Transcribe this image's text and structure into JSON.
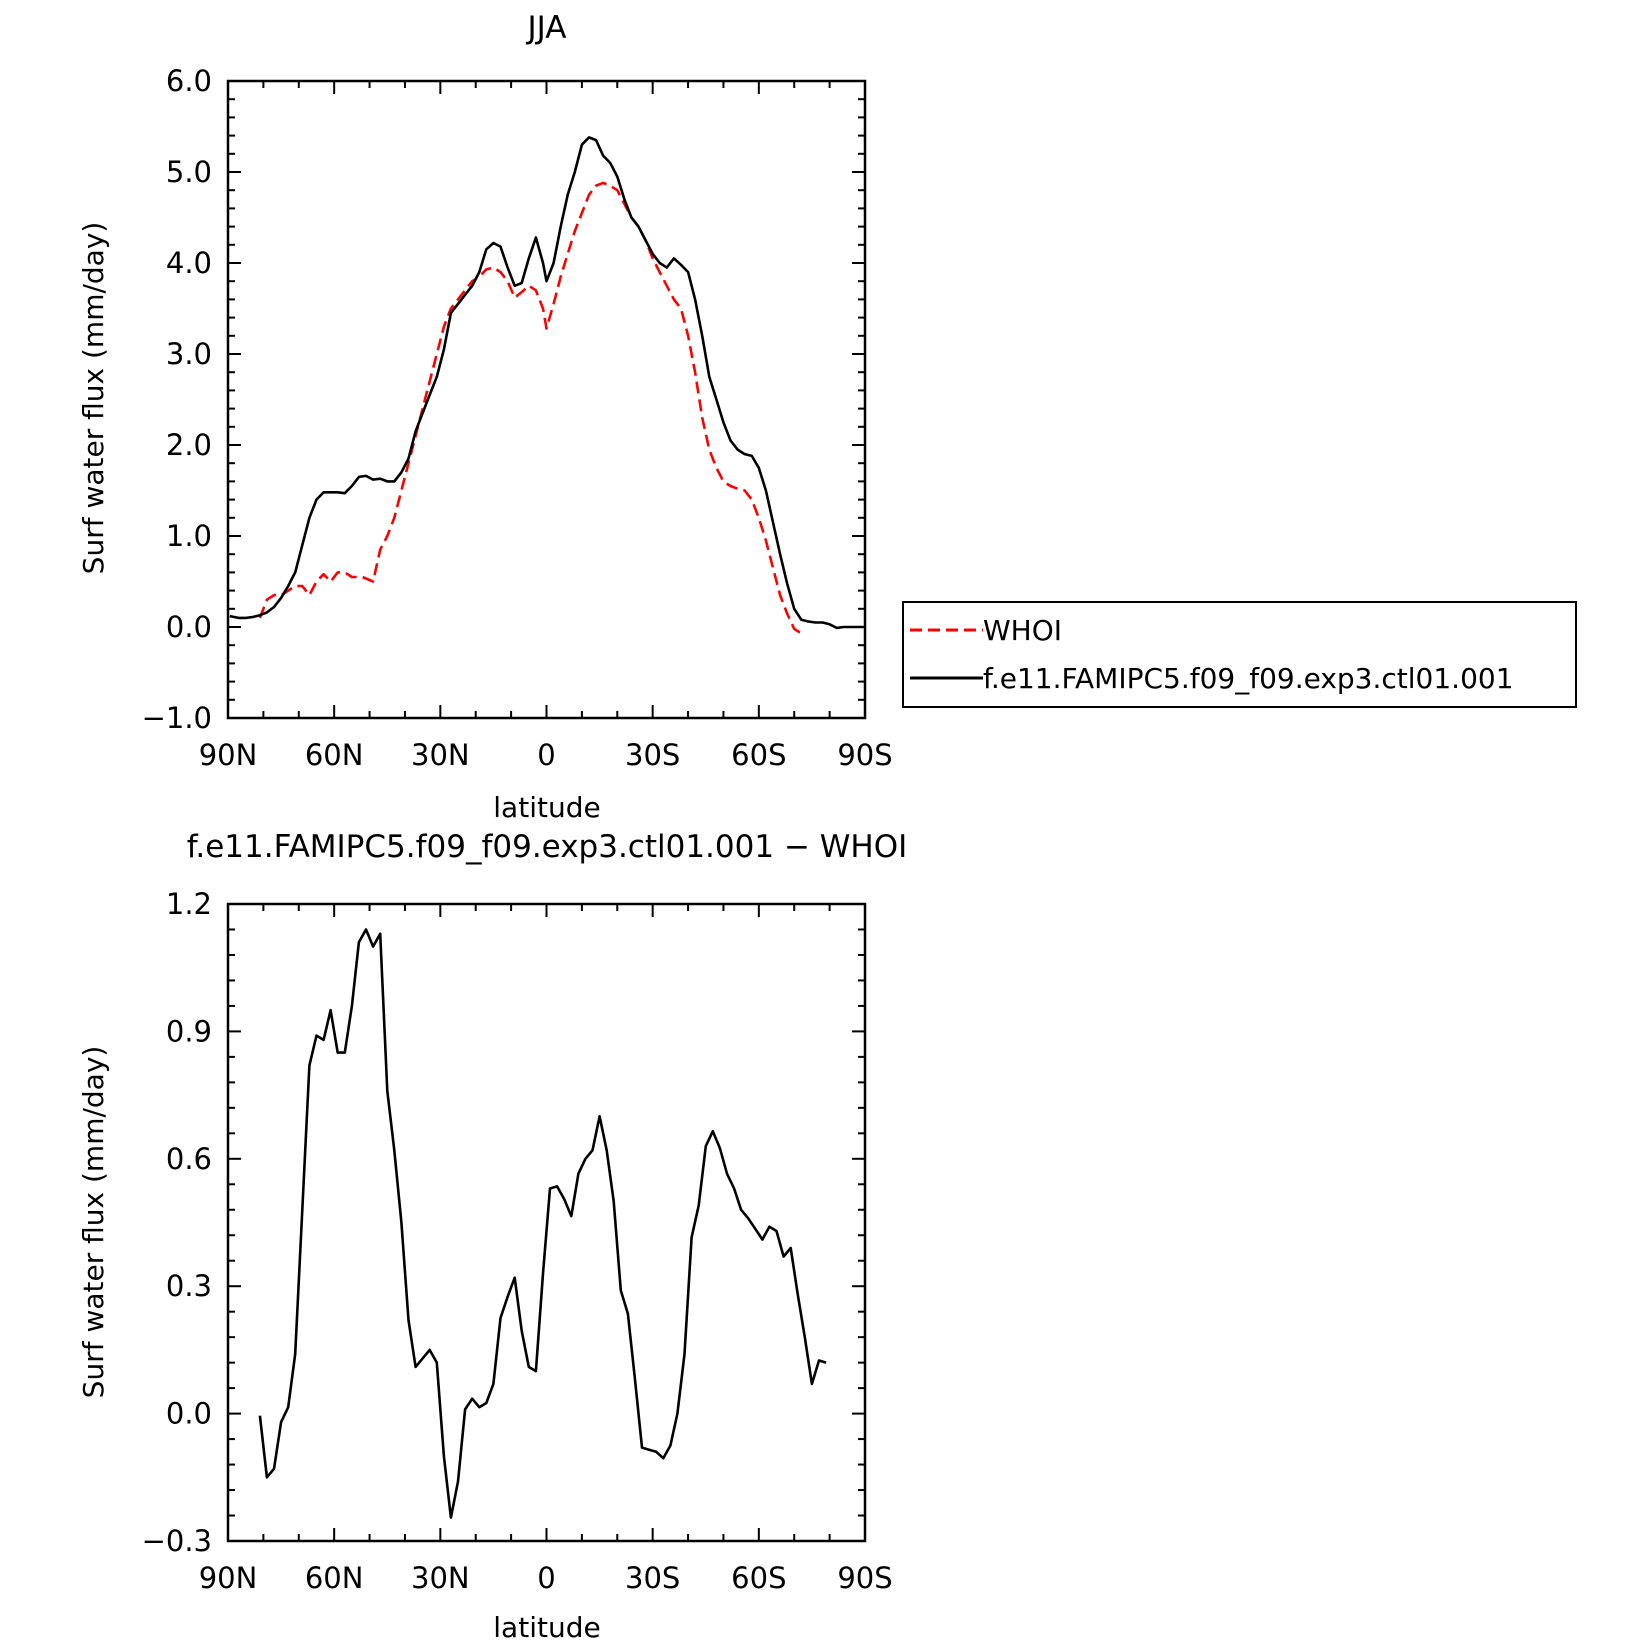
{
  "chart_data": [
    {
      "type": "line",
      "title": "JJA",
      "xlabel": "latitude",
      "ylabel": "Surf water flux (mm/day)",
      "xlim": [
        90,
        -90
      ],
      "ylim": [
        -1.0,
        6.0
      ],
      "x_ticks": [
        {
          "value": 90,
          "label": "90N"
        },
        {
          "value": 60,
          "label": "60N"
        },
        {
          "value": 30,
          "label": "30N"
        },
        {
          "value": 0,
          "label": "0"
        },
        {
          "value": -30,
          "label": "30S"
        },
        {
          "value": -60,
          "label": "60S"
        },
        {
          "value": -90,
          "label": "90S"
        }
      ],
      "y_ticks": [
        {
          "value": -1.0,
          "label": "−1.0"
        },
        {
          "value": 0.0,
          "label": "0.0"
        },
        {
          "value": 1.0,
          "label": "1.0"
        },
        {
          "value": 2.0,
          "label": "2.0"
        },
        {
          "value": 3.0,
          "label": "3.0"
        },
        {
          "value": 4.0,
          "label": "4.0"
        },
        {
          "value": 5.0,
          "label": "5.0"
        },
        {
          "value": 6.0,
          "label": "6.0"
        }
      ],
      "legend_position": "right",
      "series": [
        {
          "name": "WHOI",
          "color": "#ff0000",
          "dash": true,
          "points": [
            [
              81,
              0.1
            ],
            [
              79,
              0.3
            ],
            [
              77,
              0.35
            ],
            [
              75,
              0.35
            ],
            [
              73,
              0.4
            ],
            [
              71,
              0.45
            ],
            [
              69,
              0.45
            ],
            [
              67,
              0.35
            ],
            [
              65,
              0.5
            ],
            [
              63,
              0.58
            ],
            [
              61,
              0.5
            ],
            [
              59,
              0.6
            ],
            [
              57,
              0.6
            ],
            [
              55,
              0.55
            ],
            [
              52,
              0.55
            ],
            [
              49,
              0.5
            ],
            [
              47,
              0.85
            ],
            [
              45,
              1.0
            ],
            [
              43,
              1.2
            ],
            [
              41,
              1.5
            ],
            [
              39,
              1.8
            ],
            [
              37,
              2.1
            ],
            [
              35,
              2.4
            ],
            [
              33,
              2.7
            ],
            [
              31,
              3.0
            ],
            [
              29,
              3.3
            ],
            [
              27,
              3.5
            ],
            [
              25,
              3.6
            ],
            [
              23,
              3.7
            ],
            [
              21,
              3.8
            ],
            [
              19,
              3.85
            ],
            [
              17,
              3.93
            ],
            [
              15,
              3.95
            ],
            [
              13,
              3.9
            ],
            [
              11,
              3.8
            ],
            [
              9,
              3.62
            ],
            [
              7,
              3.68
            ],
            [
              5,
              3.75
            ],
            [
              3,
              3.7
            ],
            [
              1,
              3.5
            ],
            [
              0,
              3.28
            ],
            [
              -2,
              3.55
            ],
            [
              -4,
              3.85
            ],
            [
              -6,
              4.1
            ],
            [
              -8,
              4.35
            ],
            [
              -10,
              4.55
            ],
            [
              -12,
              4.75
            ],
            [
              -14,
              4.85
            ],
            [
              -16,
              4.88
            ],
            [
              -18,
              4.85
            ],
            [
              -20,
              4.8
            ],
            [
              -22,
              4.65
            ],
            [
              -24,
              4.5
            ],
            [
              -26,
              4.4
            ],
            [
              -28,
              4.25
            ],
            [
              -30,
              4.05
            ],
            [
              -32,
              3.9
            ],
            [
              -34,
              3.75
            ],
            [
              -36,
              3.6
            ],
            [
              -38,
              3.5
            ],
            [
              -40,
              3.2
            ],
            [
              -42,
              2.8
            ],
            [
              -44,
              2.3
            ],
            [
              -46,
              1.95
            ],
            [
              -48,
              1.75
            ],
            [
              -50,
              1.6
            ],
            [
              -52,
              1.55
            ],
            [
              -54,
              1.52
            ],
            [
              -56,
              1.5
            ],
            [
              -58,
              1.4
            ],
            [
              -60,
              1.2
            ],
            [
              -62,
              0.95
            ],
            [
              -64,
              0.65
            ],
            [
              -66,
              0.35
            ],
            [
              -68,
              0.15
            ],
            [
              -70,
              -0.02
            ],
            [
              -72,
              -0.07
            ]
          ]
        },
        {
          "name": "f.e11.FAMIPC5.f09_f09.exp3.ctl01.001",
          "color": "#000000",
          "dash": false,
          "points": [
            [
              89.5,
              0.12
            ],
            [
              87,
              0.1
            ],
            [
              85,
              0.1
            ],
            [
              83,
              0.11
            ],
            [
              81,
              0.13
            ],
            [
              79,
              0.16
            ],
            [
              77,
              0.22
            ],
            [
              75,
              0.32
            ],
            [
              73,
              0.45
            ],
            [
              71,
              0.6
            ],
            [
              69,
              0.9
            ],
            [
              67,
              1.2
            ],
            [
              65,
              1.4
            ],
            [
              63,
              1.48
            ],
            [
              61,
              1.48
            ],
            [
              59,
              1.48
            ],
            [
              57,
              1.47
            ],
            [
              55,
              1.55
            ],
            [
              53,
              1.65
            ],
            [
              51,
              1.66
            ],
            [
              49,
              1.62
            ],
            [
              47,
              1.63
            ],
            [
              45,
              1.6
            ],
            [
              43,
              1.6
            ],
            [
              41,
              1.7
            ],
            [
              39,
              1.85
            ],
            [
              37,
              2.15
            ],
            [
              35,
              2.35
            ],
            [
              33,
              2.55
            ],
            [
              31,
              2.75
            ],
            [
              29,
              3.05
            ],
            [
              27,
              3.45
            ],
            [
              25,
              3.55
            ],
            [
              23,
              3.65
            ],
            [
              21,
              3.75
            ],
            [
              19,
              3.9
            ],
            [
              17,
              4.15
            ],
            [
              15,
              4.22
            ],
            [
              13,
              4.18
            ],
            [
              11,
              3.95
            ],
            [
              9,
              3.75
            ],
            [
              7,
              3.78
            ],
            [
              5,
              4.05
            ],
            [
              3,
              4.28
            ],
            [
              1,
              4.0
            ],
            [
              0,
              3.8
            ],
            [
              -2,
              4.0
            ],
            [
              -4,
              4.4
            ],
            [
              -6,
              4.75
            ],
            [
              -8,
              5.0
            ],
            [
              -10,
              5.3
            ],
            [
              -12,
              5.38
            ],
            [
              -14,
              5.35
            ],
            [
              -16,
              5.18
            ],
            [
              -18,
              5.1
            ],
            [
              -20,
              4.95
            ],
            [
              -22,
              4.7
            ],
            [
              -24,
              4.5
            ],
            [
              -26,
              4.4
            ],
            [
              -28,
              4.25
            ],
            [
              -30,
              4.1
            ],
            [
              -32,
              4.0
            ],
            [
              -34,
              3.95
            ],
            [
              -36,
              4.05
            ],
            [
              -38,
              3.98
            ],
            [
              -40,
              3.9
            ],
            [
              -42,
              3.6
            ],
            [
              -44,
              3.2
            ],
            [
              -46,
              2.75
            ],
            [
              -48,
              2.5
            ],
            [
              -50,
              2.25
            ],
            [
              -52,
              2.05
            ],
            [
              -54,
              1.95
            ],
            [
              -56,
              1.9
            ],
            [
              -58,
              1.88
            ],
            [
              -60,
              1.75
            ],
            [
              -62,
              1.5
            ],
            [
              -64,
              1.15
            ],
            [
              -66,
              0.8
            ],
            [
              -68,
              0.48
            ],
            [
              -70,
              0.2
            ],
            [
              -72,
              0.08
            ],
            [
              -74,
              0.06
            ],
            [
              -76,
              0.05
            ],
            [
              -78,
              0.05
            ],
            [
              -80,
              0.03
            ],
            [
              -82,
              -0.01
            ],
            [
              -84,
              0.0
            ],
            [
              -86,
              0.0
            ],
            [
              -88,
              0.0
            ],
            [
              -89.5,
              0.0
            ]
          ]
        }
      ]
    },
    {
      "type": "line",
      "title": "f.e11.FAMIPC5.f09_f09.exp3.ctl01.001  −  WHOI",
      "xlabel": "latitude",
      "ylabel": "Surf water flux (mm/day)",
      "xlim": [
        90,
        -90
      ],
      "ylim": [
        -0.3,
        1.2
      ],
      "x_ticks": [
        {
          "value": 90,
          "label": "90N"
        },
        {
          "value": 60,
          "label": "60N"
        },
        {
          "value": 30,
          "label": "30N"
        },
        {
          "value": 0,
          "label": "0"
        },
        {
          "value": -30,
          "label": "30S"
        },
        {
          "value": -60,
          "label": "60S"
        },
        {
          "value": -90,
          "label": "90S"
        }
      ],
      "y_ticks": [
        {
          "value": -0.3,
          "label": "−0.3"
        },
        {
          "value": 0.0,
          "label": "0.0"
        },
        {
          "value": 0.3,
          "label": "0.3"
        },
        {
          "value": 0.6,
          "label": "0.6"
        },
        {
          "value": 0.9,
          "label": "0.9"
        },
        {
          "value": 1.2,
          "label": "1.2"
        }
      ],
      "series": [
        {
          "color": "#000000",
          "dash": false,
          "points": [
            [
              81,
              -0.005
            ],
            [
              79,
              -0.15
            ],
            [
              77,
              -0.13
            ],
            [
              75,
              -0.02
            ],
            [
              73,
              0.015
            ],
            [
              71,
              0.14
            ],
            [
              69,
              0.48
            ],
            [
              67,
              0.82
            ],
            [
              65,
              0.89
            ],
            [
              63,
              0.88
            ],
            [
              61,
              0.95
            ],
            [
              59,
              0.85
            ],
            [
              57,
              0.85
            ],
            [
              55,
              0.96
            ],
            [
              53,
              1.11
            ],
            [
              51,
              1.14
            ],
            [
              49,
              1.1
            ],
            [
              47,
              1.13
            ],
            [
              45,
              0.76
            ],
            [
              43,
              0.62
            ],
            [
              41,
              0.45
            ],
            [
              39,
              0.22
            ],
            [
              37,
              0.11
            ],
            [
              35,
              0.13
            ],
            [
              33,
              0.15
            ],
            [
              31,
              0.12
            ],
            [
              29,
              -0.1
            ],
            [
              27,
              -0.245
            ],
            [
              25,
              -0.16
            ],
            [
              23,
              0.01
            ],
            [
              21,
              0.035
            ],
            [
              19,
              0.015
            ],
            [
              17,
              0.025
            ],
            [
              15,
              0.07
            ],
            [
              13,
              0.225
            ],
            [
              11,
              0.275
            ],
            [
              9,
              0.32
            ],
            [
              7,
              0.195
            ],
            [
              5,
              0.11
            ],
            [
              3,
              0.1
            ],
            [
              1,
              0.33
            ],
            [
              -1,
              0.53
            ],
            [
              -3,
              0.535
            ],
            [
              -5,
              0.505
            ],
            [
              -7,
              0.465
            ],
            [
              -9,
              0.565
            ],
            [
              -11,
              0.6
            ],
            [
              -13,
              0.62
            ],
            [
              -15,
              0.7
            ],
            [
              -17,
              0.62
            ],
            [
              -19,
              0.5
            ],
            [
              -21,
              0.29
            ],
            [
              -23,
              0.235
            ],
            [
              -25,
              0.08
            ],
            [
              -27,
              -0.08
            ],
            [
              -29,
              -0.085
            ],
            [
              -31,
              -0.09
            ],
            [
              -33,
              -0.105
            ],
            [
              -35,
              -0.075
            ],
            [
              -37,
              0.0
            ],
            [
              -39,
              0.14
            ],
            [
              -41,
              0.415
            ],
            [
              -43,
              0.49
            ],
            [
              -45,
              0.63
            ],
            [
              -47,
              0.665
            ],
            [
              -49,
              0.625
            ],
            [
              -51,
              0.565
            ],
            [
              -53,
              0.53
            ],
            [
              -55,
              0.48
            ],
            [
              -57,
              0.46
            ],
            [
              -59,
              0.435
            ],
            [
              -61,
              0.41
            ],
            [
              -63,
              0.44
            ],
            [
              -65,
              0.43
            ],
            [
              -67,
              0.37
            ],
            [
              -69,
              0.39
            ],
            [
              -71,
              0.28
            ],
            [
              -73,
              0.18
            ],
            [
              -75,
              0.07
            ],
            [
              -77,
              0.125
            ],
            [
              -79,
              0.12
            ]
          ]
        }
      ]
    }
  ]
}
